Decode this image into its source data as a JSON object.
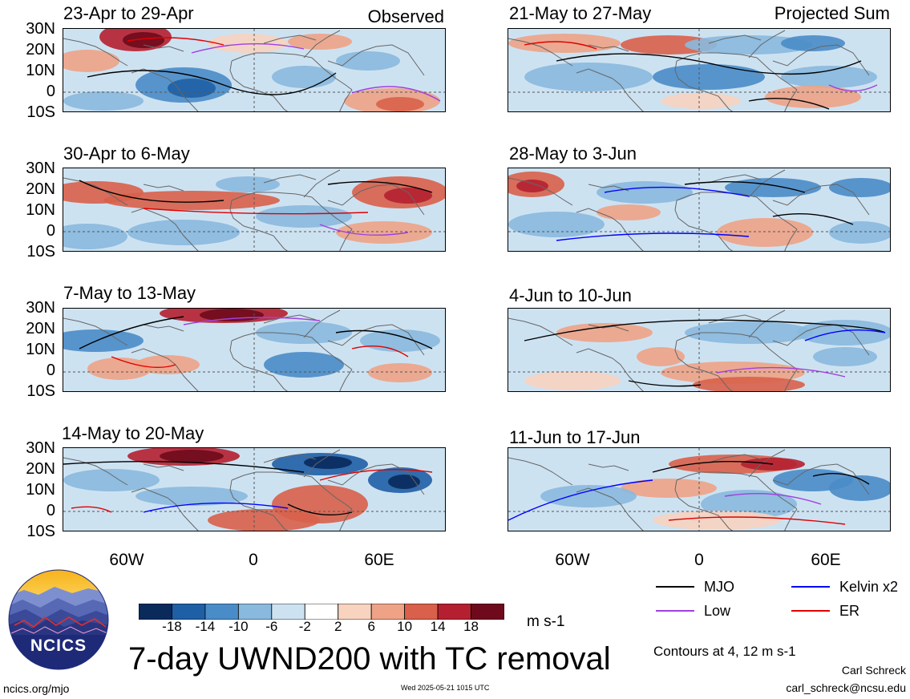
{
  "panels": {
    "observed": [
      {
        "title": "23-Apr to 29-Apr"
      },
      {
        "title": "30-Apr to 6-May"
      },
      {
        "title": "7-May to 13-May"
      },
      {
        "title": "14-May to 20-May"
      }
    ],
    "projected": [
      {
        "title": "21-May to 27-May"
      },
      {
        "title": "28-May to 3-Jun"
      },
      {
        "title": "4-Jun to 10-Jun"
      },
      {
        "title": "11-Jun to 17-Jun"
      }
    ]
  },
  "corner_labels": {
    "observed": "Observed",
    "projected": "Projected Sum"
  },
  "lat_labels": [
    "30N",
    "20N",
    "10N",
    "0",
    "10S"
  ],
  "lon_labels": [
    "60W",
    "0",
    "60E"
  ],
  "colorbar": {
    "ticks": [
      "-18",
      "-14",
      "-10",
      "-6",
      "-2",
      "2",
      "6",
      "10",
      "14",
      "18"
    ],
    "colors": [
      "#0a2a5c",
      "#1f5fa6",
      "#4a8cc8",
      "#8ab9de",
      "#cde2f1",
      "#ffffff",
      "#f7d3c0",
      "#eea386",
      "#d9604a",
      "#b52030",
      "#6e0a1c"
    ],
    "units": "m s-1"
  },
  "main_title": "7-day UWND200 with TC removal",
  "legend": [
    {
      "label": "MJO",
      "color": "#000000"
    },
    {
      "label": "Kelvin x2",
      "color": "#0000ff"
    },
    {
      "label": "Low",
      "color": "#a040e0"
    },
    {
      "label": "ER",
      "color": "#e00000"
    }
  ],
  "contour_note": "Contours at 4, 12 m s-1",
  "org_name": "NCICS",
  "org_url": "ncics.org/mjo",
  "timestamp": "Wed 2025-05-21 1015 UTC",
  "author": "Carl Schreck",
  "email": "carl_schreck@ncsu.edu"
}
